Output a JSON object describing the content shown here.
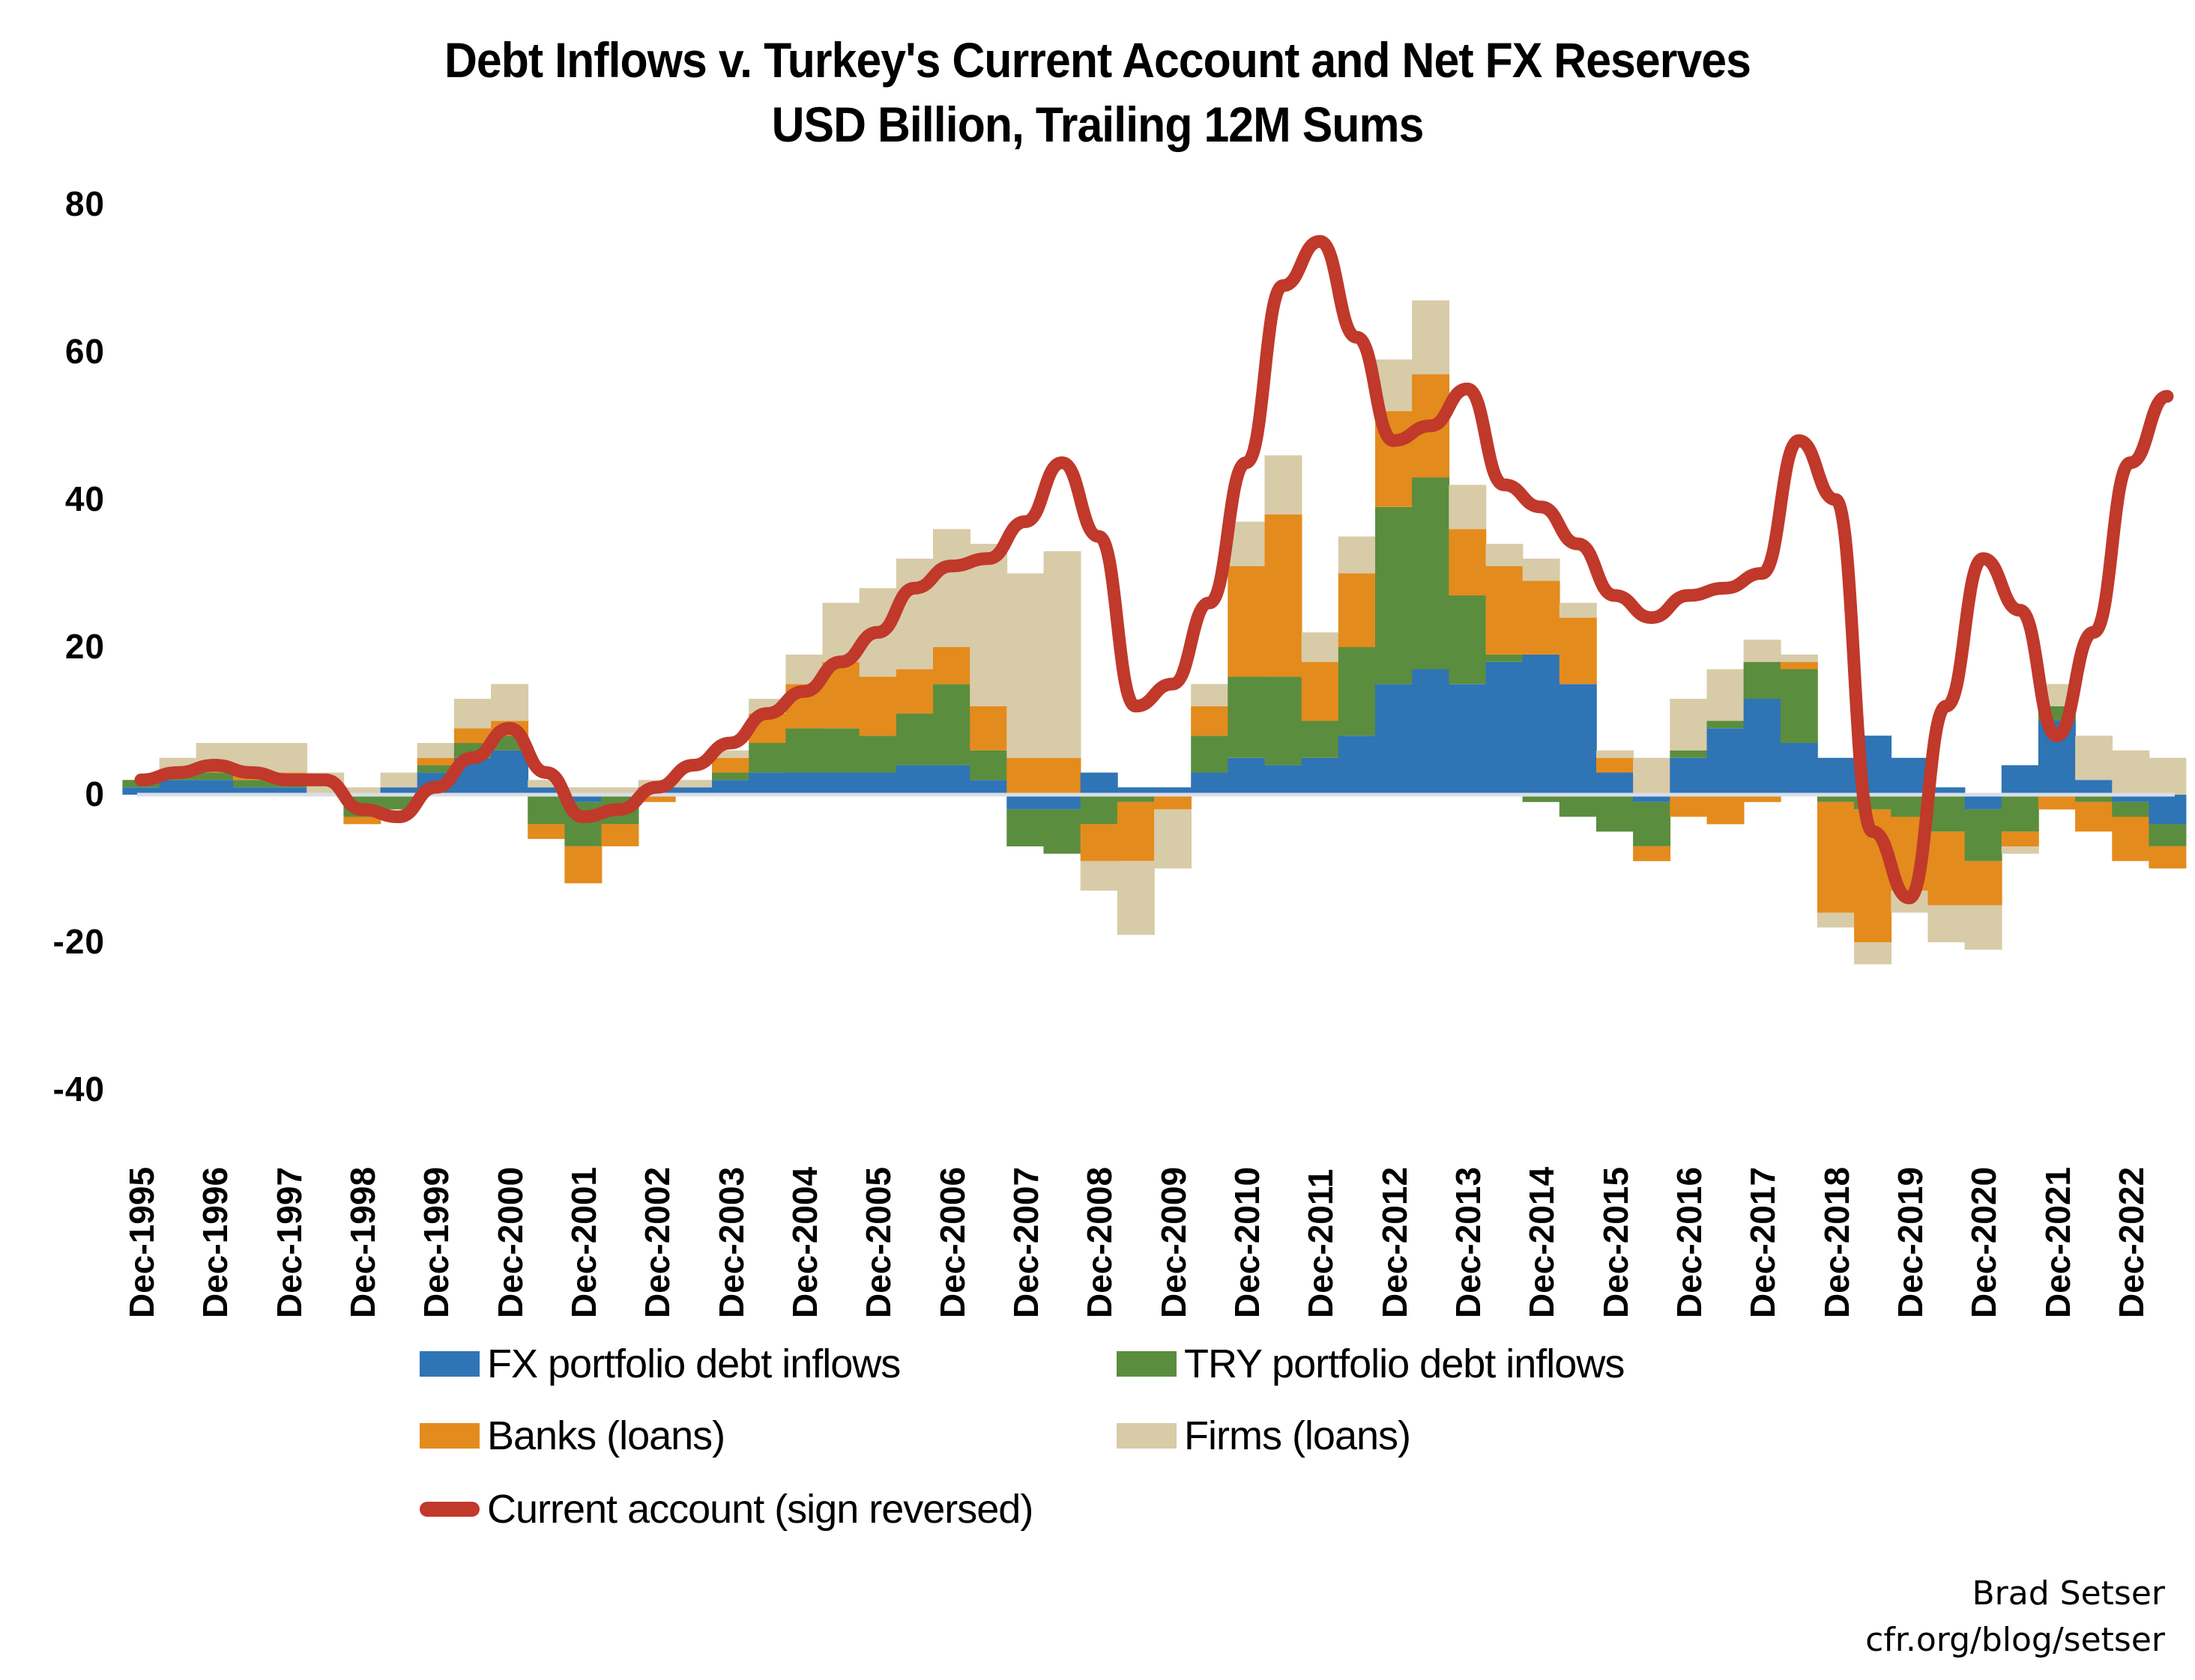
{
  "title": {
    "line1": "Debt Inflows v. Turkey's Current Account and Net FX Reserves",
    "line2": "USD Billion, Trailing 12M Sums"
  },
  "legend": {
    "fx": "FX portfolio debt inflows",
    "try": "TRY portfolio debt inflows",
    "banks": "Banks (loans)",
    "firms": "Firms (loans)",
    "ca": "Current account (sign reversed)"
  },
  "source": {
    "author": "Brad Setser",
    "url": "cfr.org/blog/setser"
  },
  "colors": {
    "fx": "#2F74B5",
    "try": "#5B8D3E",
    "banks": "#E48B1D",
    "firms": "#D8CBA8",
    "ca": "#C0392B",
    "zero_line": "#D9DEE6"
  },
  "chart_data": {
    "type": "area",
    "title": "Debt Inflows v. Turkey's Current Account and Net FX Reserves",
    "subtitle": "USD Billion, Trailing 12M Sums",
    "xlabel": "",
    "ylabel": "",
    "ylim": [
      -40,
      80
    ],
    "yticks": [
      80,
      60,
      40,
      20,
      0,
      -20,
      -40
    ],
    "grid": false,
    "legend_position": "bottom",
    "categories": [
      "Dec-1995",
      "Dec-1996",
      "Dec-1997",
      "Dec-1998",
      "Dec-1999",
      "Dec-2000",
      "Dec-2001",
      "Dec-2002",
      "Dec-2003",
      "Dec-2004",
      "Dec-2005",
      "Dec-2006",
      "Dec-2007",
      "Dec-2008",
      "Dec-2009",
      "Dec-2010",
      "Dec-2011",
      "Dec-2012",
      "Dec-2013",
      "Dec-2014",
      "Dec-2015",
      "Dec-2016",
      "Dec-2017",
      "Dec-2018",
      "Dec-2019",
      "Dec-2020",
      "Dec-2021",
      "Dec-2022"
    ],
    "x": [
      "Dec-1995",
      "Jun-1996",
      "Dec-1996",
      "Jun-1997",
      "Dec-1997",
      "Jun-1998",
      "Dec-1998",
      "Jun-1999",
      "Dec-1999",
      "Jun-2000",
      "Dec-2000",
      "Jun-2001",
      "Dec-2001",
      "Jun-2002",
      "Dec-2002",
      "Jun-2003",
      "Dec-2003",
      "Jun-2004",
      "Dec-2004",
      "Jun-2005",
      "Dec-2005",
      "Jun-2006",
      "Dec-2006",
      "Jun-2007",
      "Dec-2007",
      "Jun-2008",
      "Dec-2008",
      "Jun-2009",
      "Dec-2009",
      "Jun-2010",
      "Dec-2010",
      "Jun-2011",
      "Dec-2011",
      "Jun-2012",
      "Dec-2012",
      "Jun-2013",
      "Dec-2013",
      "Jun-2014",
      "Dec-2014",
      "Jun-2015",
      "Dec-2015",
      "Jun-2016",
      "Dec-2016",
      "Jun-2017",
      "Dec-2017",
      "Jun-2018",
      "Dec-2018",
      "Jun-2019",
      "Dec-2019",
      "Jun-2020",
      "Dec-2020",
      "Jun-2021",
      "Dec-2021",
      "Jun-2022",
      "Dec-2022",
      "Jun-2023"
    ],
    "series": [
      {
        "name": "FX portfolio debt inflows",
        "type": "area",
        "values": [
          1,
          2,
          2,
          1,
          1,
          0,
          0,
          1,
          3,
          5,
          6,
          1,
          -1,
          0,
          1,
          1,
          2,
          3,
          3,
          3,
          3,
          4,
          4,
          2,
          -2,
          -2,
          3,
          1,
          1,
          3,
          5,
          4,
          5,
          8,
          15,
          17,
          15,
          18,
          19,
          15,
          3,
          -1,
          5,
          9,
          13,
          7,
          5,
          8,
          5,
          1,
          -2,
          4,
          10,
          2,
          -1,
          -4
        ]
      },
      {
        "name": "TRY portfolio debt inflows",
        "type": "area",
        "values": [
          1,
          1,
          1,
          1,
          1,
          0,
          -3,
          -2,
          1,
          2,
          2,
          -4,
          -6,
          -4,
          0,
          0,
          1,
          4,
          6,
          6,
          5,
          7,
          11,
          4,
          -5,
          -6,
          -4,
          -1,
          0,
          5,
          11,
          12,
          5,
          12,
          24,
          26,
          12,
          1,
          -1,
          -3,
          -5,
          -6,
          1,
          1,
          5,
          10,
          -1,
          -2,
          -3,
          -5,
          -7,
          -5,
          2,
          -1,
          -2,
          -3
        ]
      },
      {
        "name": "Banks (loans)",
        "type": "area",
        "values": [
          0,
          0,
          1,
          1,
          1,
          0,
          -1,
          0,
          1,
          2,
          2,
          -2,
          -5,
          -3,
          -1,
          0,
          2,
          4,
          6,
          9,
          8,
          6,
          5,
          6,
          5,
          5,
          -5,
          -8,
          -2,
          4,
          15,
          22,
          8,
          10,
          13,
          14,
          9,
          12,
          10,
          9,
          2,
          -2,
          -3,
          -4,
          -1,
          1,
          -15,
          -18,
          -10,
          -10,
          -6,
          -2,
          -2,
          -4,
          -6,
          -3
        ]
      },
      {
        "name": "Firms (loans)",
        "type": "area",
        "values": [
          0,
          2,
          3,
          4,
          4,
          3,
          1,
          2,
          2,
          4,
          5,
          1,
          1,
          1,
          1,
          1,
          1,
          2,
          4,
          8,
          12,
          15,
          16,
          22,
          25,
          28,
          -4,
          -10,
          -8,
          3,
          6,
          8,
          4,
          5,
          7,
          10,
          6,
          3,
          3,
          2,
          1,
          5,
          7,
          7,
          3,
          1,
          -2,
          -3,
          -3,
          -5,
          -6,
          -1,
          3,
          6,
          6,
          5
        ]
      },
      {
        "name": "Current account (sign reversed)",
        "type": "line",
        "values": [
          2,
          3,
          4,
          3,
          2,
          2,
          -2,
          -3,
          1,
          5,
          9,
          3,
          -3,
          -2,
          1,
          4,
          7,
          11,
          14,
          18,
          22,
          28,
          31,
          32,
          37,
          45,
          35,
          12,
          15,
          26,
          45,
          69,
          75,
          62,
          48,
          50,
          55,
          42,
          39,
          34,
          27,
          24,
          27,
          28,
          30,
          48,
          40,
          -5,
          -14,
          12,
          32,
          25,
          8,
          22,
          45,
          54
        ]
      }
    ]
  }
}
